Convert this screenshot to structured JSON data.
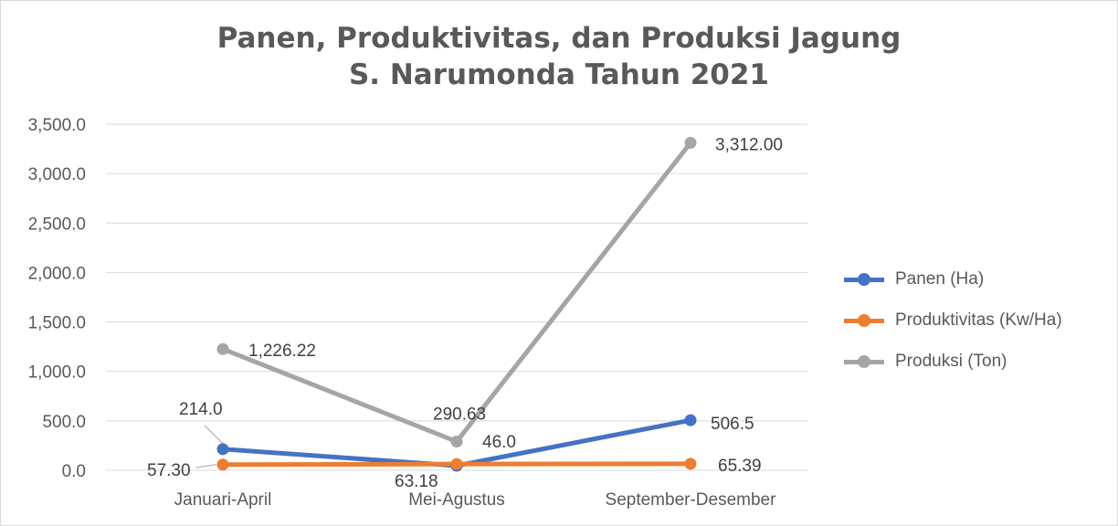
{
  "chart_data": {
    "type": "line",
    "title_lines": [
      "Panen, Produktivitas, dan Produksi Jagung",
      "S. Narumonda Tahun 2021"
    ],
    "categories": [
      "Januari-April",
      "Mei-Agustus",
      "September-Desember"
    ],
    "ylim": [
      0,
      3500
    ],
    "yticks": [
      0,
      500,
      1000,
      1500,
      2000,
      2500,
      3000,
      3500
    ],
    "ytick_labels": [
      "0.0",
      "500.0",
      "1,000.0",
      "1,500.0",
      "2,000.0",
      "2,500.0",
      "3,000.0",
      "3,500.0"
    ],
    "grid": true,
    "legend_position": "right",
    "series": [
      {
        "name": "Panen (Ha)",
        "color": "#4472c4",
        "values": [
          214.0,
          46.0,
          506.5
        ],
        "labels": [
          "214.0",
          "46.0",
          "506.5"
        ]
      },
      {
        "name": "Produktivitas (Kw/Ha)",
        "color": "#ed7d31",
        "values": [
          57.3,
          63.18,
          65.39
        ],
        "labels": [
          "57.30",
          "63.18",
          "65.39"
        ]
      },
      {
        "name": "Produksi (Ton)",
        "color": "#a5a5a5",
        "values": [
          1226.22,
          290.63,
          3312.0
        ],
        "labels": [
          "1,226.22",
          "290.63",
          "3,312.00"
        ]
      }
    ]
  }
}
